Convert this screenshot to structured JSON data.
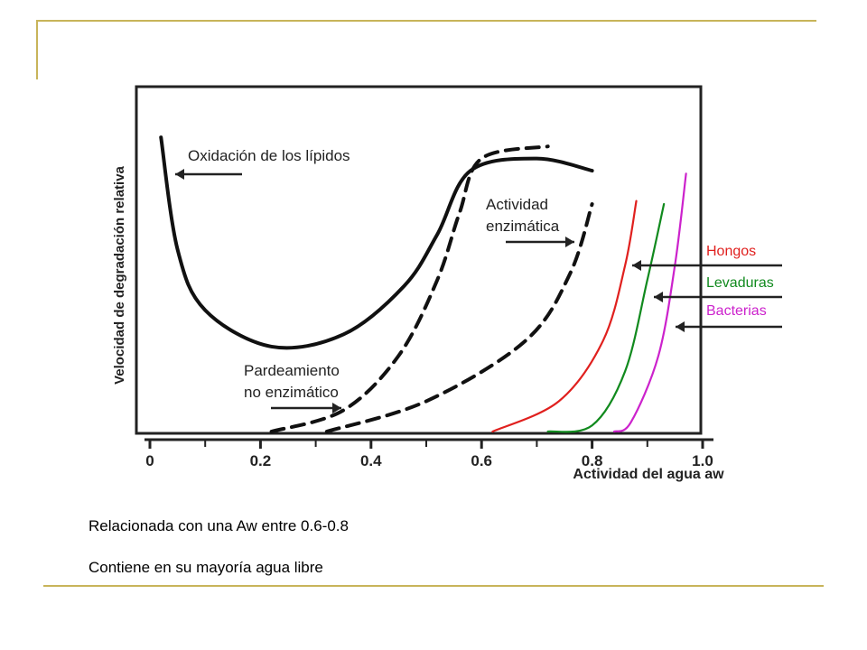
{
  "slide": {
    "captions": [
      "Relacionada con una Aw entre 0.6-0.8",
      "Contiene en su mayoría agua libre"
    ]
  },
  "chart_data": {
    "type": "line",
    "xlabel": "Actividad del agua aw",
    "ylabel": "Velocidad de degradación relativa",
    "xlim": [
      0,
      1.0
    ],
    "ylim": [
      0,
      1
    ],
    "x_ticks": [
      "0",
      "0.2",
      "0.4",
      "0.6",
      "0.8",
      "1.0"
    ],
    "y_ticks": [],
    "grid": false,
    "annotations": {
      "lipids": "Oxidación de los lípidos",
      "enzyme_line1": "Actividad",
      "enzyme_line2": "enzimática",
      "browning_line1": "Pardeamiento",
      "browning_line2": "no enzimático"
    },
    "series": [
      {
        "name": "Oxidación de los lípidos",
        "style": "solid",
        "color": "#111111",
        "points": [
          [
            0.02,
            0.97
          ],
          [
            0.05,
            0.6
          ],
          [
            0.1,
            0.4
          ],
          [
            0.22,
            0.28
          ],
          [
            0.35,
            0.32
          ],
          [
            0.46,
            0.48
          ],
          [
            0.52,
            0.65
          ],
          [
            0.58,
            0.86
          ],
          [
            0.7,
            0.9
          ],
          [
            0.8,
            0.86
          ]
        ]
      },
      {
        "name": "Pardeamiento no enzimático",
        "style": "dashed",
        "color": "#111111",
        "points": [
          [
            0.22,
            0.0
          ],
          [
            0.35,
            0.07
          ],
          [
            0.45,
            0.25
          ],
          [
            0.52,
            0.5
          ],
          [
            0.56,
            0.72
          ],
          [
            0.6,
            0.9
          ],
          [
            0.72,
            0.94
          ]
        ]
      },
      {
        "name": "Actividad enzimática",
        "style": "dashed",
        "color": "#111111",
        "points": [
          [
            0.32,
            0.0
          ],
          [
            0.5,
            0.1
          ],
          [
            0.68,
            0.3
          ],
          [
            0.76,
            0.52
          ],
          [
            0.8,
            0.75
          ]
        ]
      },
      {
        "name": "Hongos",
        "style": "solid",
        "color": "#e0201e",
        "points": [
          [
            0.62,
            0.0
          ],
          [
            0.74,
            0.1
          ],
          [
            0.82,
            0.3
          ],
          [
            0.86,
            0.55
          ],
          [
            0.88,
            0.76
          ]
        ]
      },
      {
        "name": "Levaduras",
        "style": "solid",
        "color": "#118a1e",
        "points": [
          [
            0.72,
            0.0
          ],
          [
            0.8,
            0.02
          ],
          [
            0.86,
            0.2
          ],
          [
            0.9,
            0.5
          ],
          [
            0.93,
            0.75
          ]
        ]
      },
      {
        "name": "Bacterias",
        "style": "solid",
        "color": "#cc22cc",
        "points": [
          [
            0.84,
            0.0
          ],
          [
            0.87,
            0.03
          ],
          [
            0.92,
            0.25
          ],
          [
            0.95,
            0.55
          ],
          [
            0.97,
            0.85
          ]
        ]
      }
    ]
  }
}
